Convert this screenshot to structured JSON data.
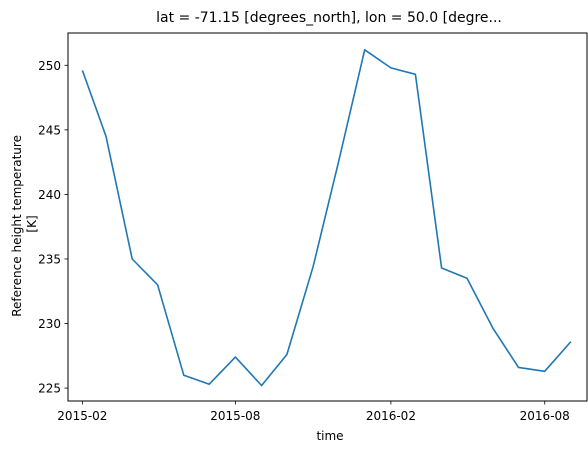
{
  "chart_data": {
    "type": "line",
    "title": "lat = -71.15 [degrees_north], lon = 50.0 [degre...",
    "xlabel": "time",
    "ylabel_lines": [
      "Reference height temperature",
      "[K]"
    ],
    "x_ticks": [
      "2015-02",
      "2015-08",
      "2016-02",
      "2016-08"
    ],
    "y_ticks": [
      225,
      230,
      235,
      240,
      245,
      250
    ],
    "ylim": [
      224.0,
      252.5
    ],
    "xlim": [
      "2015-01-15",
      "2016-09-20"
    ],
    "grid": false,
    "legend": "none",
    "series": [
      {
        "color": "#1f77b4",
        "x": [
          "2015-02-01",
          "2015-03-01",
          "2015-04-01",
          "2015-05-01",
          "2015-06-01",
          "2015-07-01",
          "2015-08-01",
          "2015-09-01",
          "2015-10-01",
          "2015-11-01",
          "2015-12-01",
          "2016-01-01",
          "2016-02-01",
          "2016-03-01",
          "2016-04-01",
          "2016-05-01",
          "2016-06-01",
          "2016-07-01",
          "2016-08-01",
          "2016-09-01"
        ],
        "values": [
          249.6,
          244.5,
          235.0,
          233.0,
          226.0,
          225.3,
          227.4,
          225.2,
          227.6,
          234.4,
          242.5,
          251.2,
          249.8,
          249.3,
          234.3,
          233.5,
          229.6,
          226.6,
          226.3,
          228.6
        ]
      }
    ]
  }
}
